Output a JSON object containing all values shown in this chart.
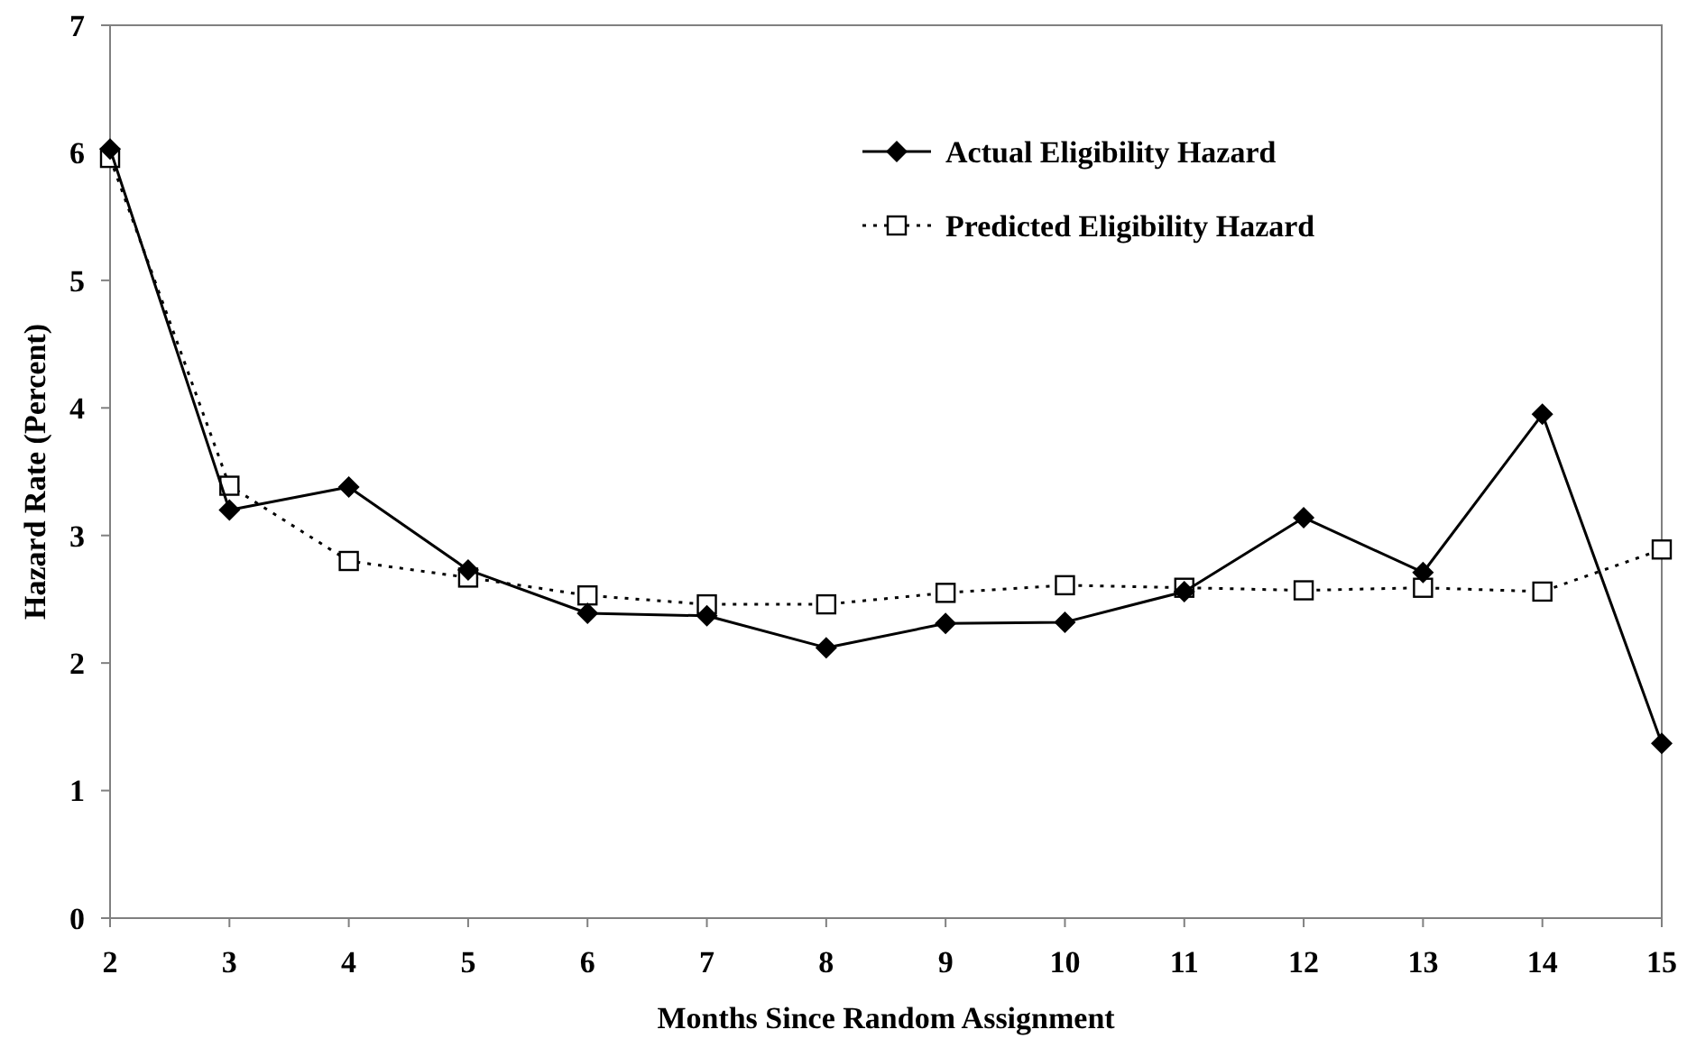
{
  "chart_data": {
    "type": "line",
    "xlabel": "Months Since Random Assignment",
    "ylabel": "Hazard Rate (Percent)",
    "x": [
      2,
      3,
      4,
      5,
      6,
      7,
      8,
      9,
      10,
      11,
      12,
      13,
      14,
      15
    ],
    "series": [
      {
        "name": "Actual Eligibility Hazard",
        "color": "#000000",
        "marker": "diamond",
        "line_style": "solid",
        "values": [
          6.03,
          3.2,
          3.38,
          2.73,
          2.39,
          2.37,
          2.12,
          2.31,
          2.32,
          2.56,
          3.14,
          2.71,
          3.95,
          1.37
        ]
      },
      {
        "name": "Predicted Eligibility Hazard",
        "color": "#000000",
        "marker": "square",
        "line_style": "dotted",
        "values": [
          5.96,
          3.39,
          2.8,
          2.67,
          2.53,
          2.46,
          2.46,
          2.55,
          2.61,
          2.59,
          2.57,
          2.59,
          2.56,
          2.89
        ]
      }
    ],
    "xlim": [
      2,
      15
    ],
    "xticks": [
      2,
      3,
      4,
      5,
      6,
      7,
      8,
      9,
      10,
      11,
      12,
      13,
      14,
      15
    ],
    "ylim": [
      0,
      7
    ],
    "yticks": [
      0,
      1,
      2,
      3,
      4,
      5,
      6,
      7
    ],
    "grid": false,
    "legend": "top right"
  }
}
